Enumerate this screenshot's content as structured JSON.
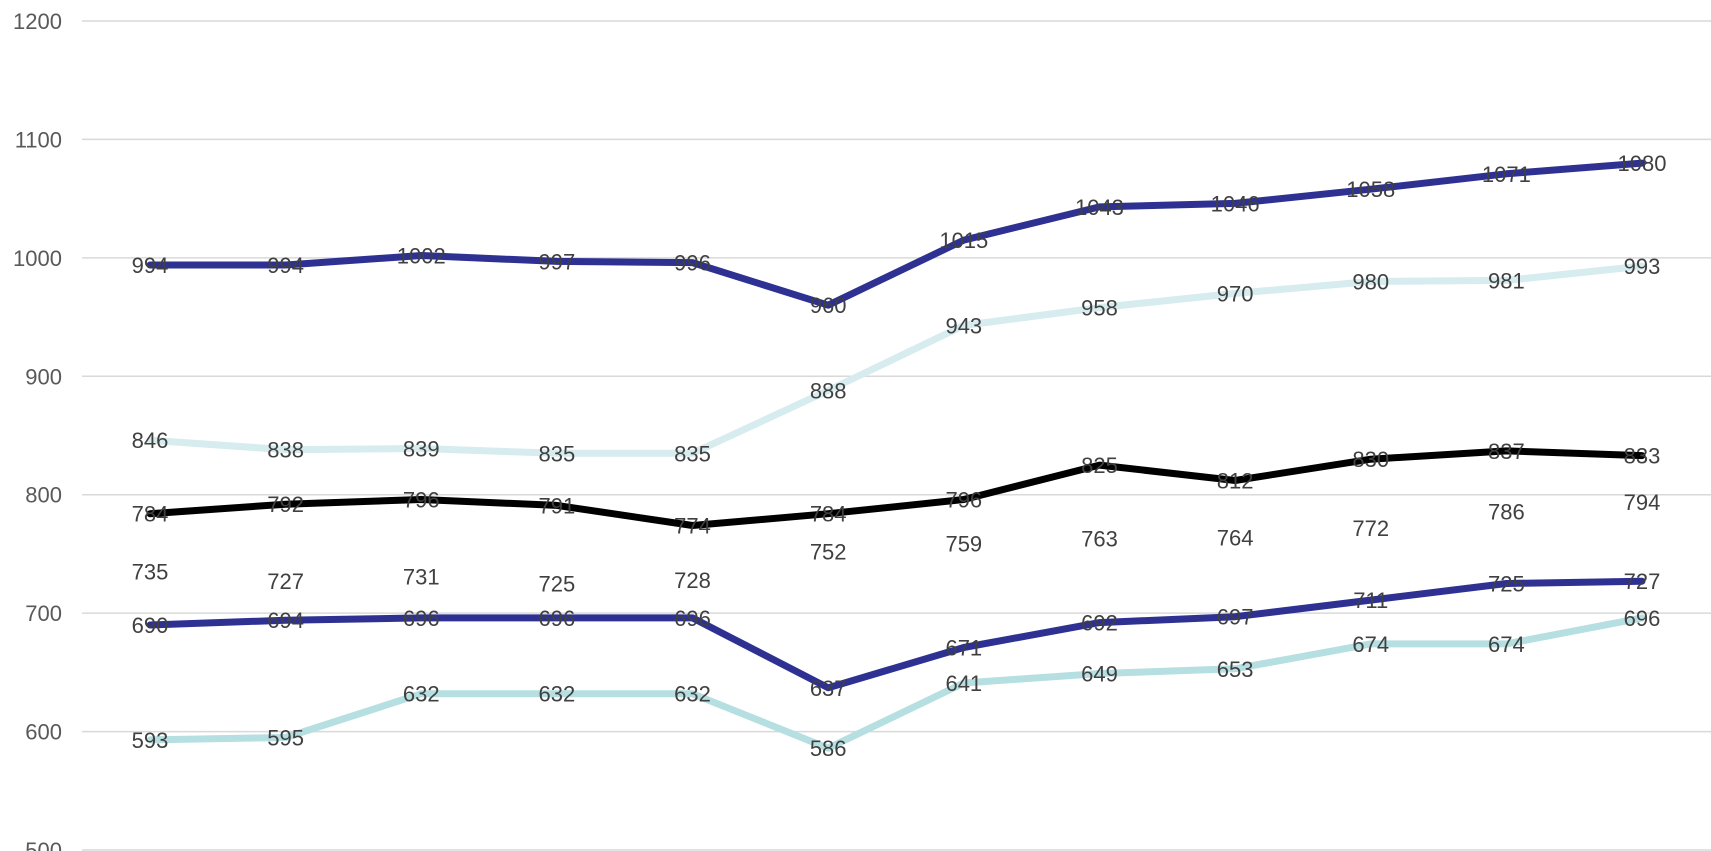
{
  "chart_data": {
    "type": "line",
    "title": "",
    "xlabel": "",
    "ylabel": "",
    "ylim": [
      500,
      1200
    ],
    "yticks": [
      500,
      600,
      700,
      800,
      900,
      1000,
      1100,
      1200
    ],
    "grid": true,
    "legend": "none",
    "x": [
      1,
      2,
      3,
      4,
      5,
      6,
      7,
      8,
      9,
      10,
      11,
      12
    ],
    "series": [
      {
        "color": "#d6ecef",
        "values": [
          846,
          838,
          839,
          835,
          835,
          888,
          943,
          958,
          970,
          980,
          981,
          993
        ]
      },
      {
        "color": "#2e3192",
        "values": [
          994,
          994,
          1002,
          997,
          996,
          960,
          1015,
          1043,
          1046,
          1058,
          1071,
          1080
        ]
      },
      {
        "color": "#000000",
        "values": [
          784,
          792,
          796,
          791,
          774,
          784,
          796,
          825,
          812,
          830,
          837,
          833
        ]
      },
      {
        "color": "#ffffff",
        "values": [
          735,
          727,
          731,
          725,
          728,
          752,
          759,
          763,
          764,
          772,
          786,
          794
        ]
      },
      {
        "color": "#b6dfe2",
        "values": [
          593,
          595,
          632,
          632,
          632,
          586,
          641,
          649,
          653,
          674,
          674,
          696
        ]
      },
      {
        "color": "#2e3192",
        "values": [
          690,
          694,
          696,
          696,
          696,
          637,
          671,
          692,
          697,
          711,
          725,
          727
        ]
      }
    ]
  }
}
